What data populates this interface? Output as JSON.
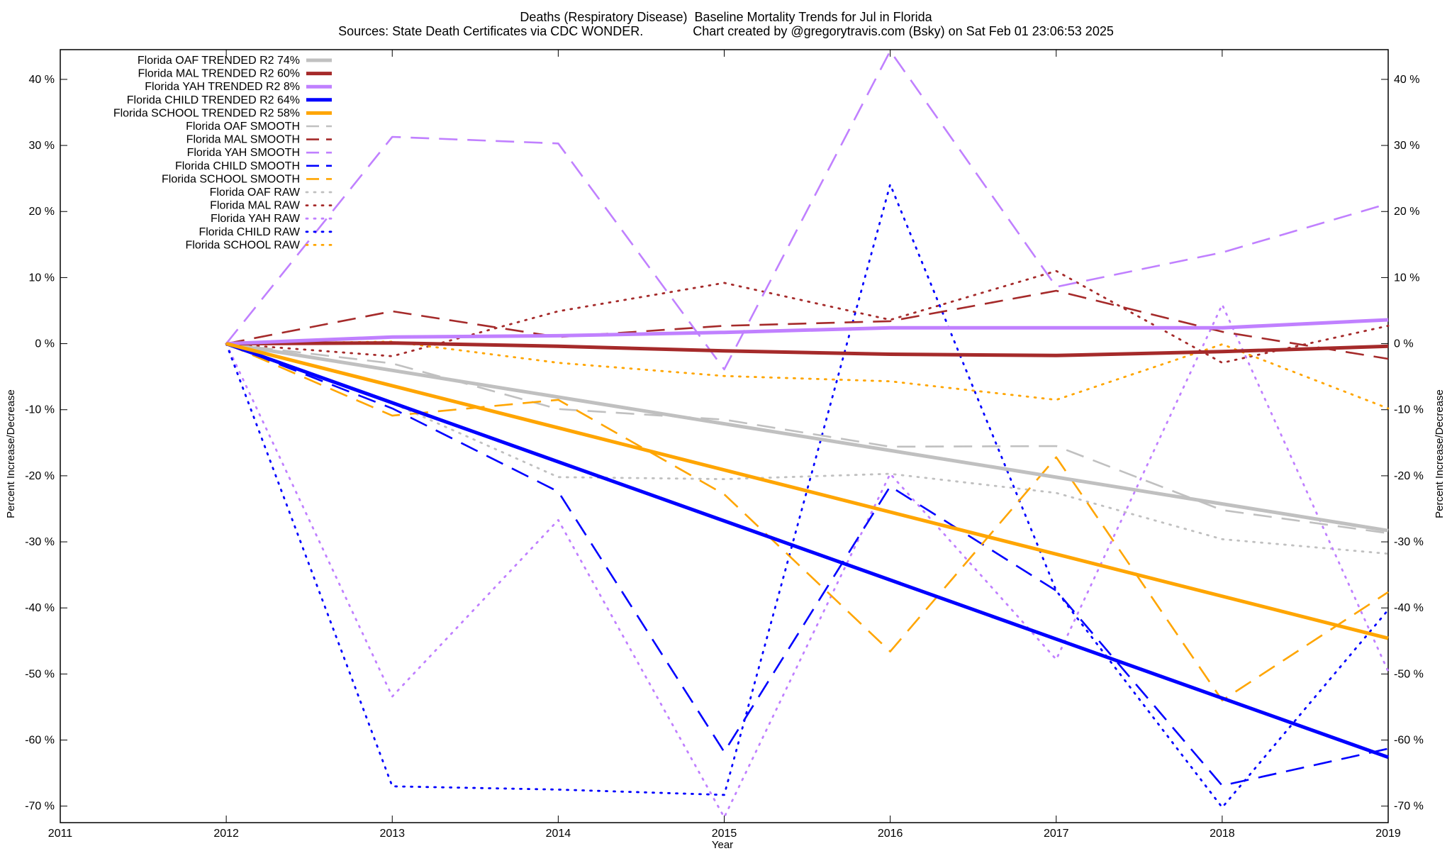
{
  "chart_data": {
    "type": "line",
    "title": "Deaths (Respiratory Disease)  Baseline Mortality Trends for Jul in Florida",
    "subtitle": "Sources: State Death Certificates via CDC WONDER.              Chart created by @gregorytravis.com (Bsky) on Sat Feb 01 23:06:53 2025",
    "xlabel": "Year",
    "ylabel": "Percent Increase/Decrease",
    "y2label": "Percent Increase/Decrease",
    "xlim": [
      2011,
      2019
    ],
    "ylim": [
      -72.5,
      44.5
    ],
    "x_ticks": [
      "2011",
      "2012",
      "2013",
      "2014",
      "2015",
      "2016",
      "2017",
      "2018",
      "2019"
    ],
    "y_ticks": [
      "40 %",
      "30 %",
      "20 %",
      "10 %",
      "0 %",
      "-10 %",
      "-20 %",
      "-30 %",
      "-40 %",
      "-50 %",
      "-60 %",
      "-70 %"
    ],
    "y_tick_values": [
      40,
      30,
      20,
      10,
      0,
      -10,
      -20,
      -30,
      -40,
      -50,
      -60,
      -70
    ],
    "grid": false,
    "legend_position": "top-left",
    "colors": {
      "oaf": "#c0c0c0",
      "mal": "#a52a2a",
      "yah": "#c080ff",
      "child": "#0000ff",
      "school": "#ffa500"
    },
    "series": [
      {
        "name": "Florida OAF TRENDED R2  74%",
        "color_key": "oaf",
        "style": "trend",
        "x": [
          2012,
          2019
        ],
        "y": [
          0,
          -28.3
        ]
      },
      {
        "name": "Florida MAL TRENDED R2  60%",
        "color_key": "mal",
        "style": "trend",
        "x": [
          2012,
          2013,
          2014,
          2015,
          2016,
          2017,
          2018,
          2019
        ],
        "y": [
          0,
          0.1,
          -0.4,
          -1.1,
          -1.6,
          -1.8,
          -1.2,
          -0.4
        ]
      },
      {
        "name": "Florida YAH TRENDED R2   8%",
        "color_key": "yah",
        "style": "trend",
        "x": [
          2012,
          2013,
          2014,
          2015,
          2016,
          2017,
          2018,
          2019
        ],
        "y": [
          0,
          1.0,
          1.2,
          1.7,
          2.4,
          2.4,
          2.4,
          3.6
        ]
      },
      {
        "name": "Florida CHILD TRENDED R2  64%",
        "color_key": "child",
        "style": "trend",
        "x": [
          2012,
          2019
        ],
        "y": [
          0,
          -62.6
        ]
      },
      {
        "name": "Florida SCHOOL TRENDED R2  58%",
        "color_key": "school",
        "style": "trend",
        "x": [
          2012,
          2019
        ],
        "y": [
          0,
          -44.6
        ]
      },
      {
        "name": "Florida OAF SMOOTH",
        "color_key": "oaf",
        "style": "smooth",
        "x": [
          2012,
          2013,
          2014,
          2015,
          2016,
          2017,
          2018,
          2019
        ],
        "y": [
          0,
          -3.0,
          -9.9,
          -11.5,
          -15.6,
          -15.5,
          -25.2,
          -28.7
        ]
      },
      {
        "name": "Florida MAL SMOOTH",
        "color_key": "mal",
        "style": "smooth",
        "x": [
          2012,
          2013,
          2014,
          2015,
          2016,
          2017,
          2018,
          2019
        ],
        "y": [
          0,
          4.9,
          1.0,
          2.7,
          3.4,
          8.0,
          1.8,
          -2.3
        ]
      },
      {
        "name": "Florida YAH SMOOTH",
        "color_key": "yah",
        "style": "smooth",
        "x": [
          2012,
          2013,
          2014,
          2015,
          2016,
          2017,
          2018,
          2019
        ],
        "y": [
          0,
          31.3,
          30.3,
          -3.9,
          44.3,
          8.6,
          13.8,
          21.2
        ]
      },
      {
        "name": "Florida CHILD SMOOTH",
        "color_key": "child",
        "style": "smooth",
        "x": [
          2012,
          2013,
          2014,
          2015,
          2016,
          2017,
          2018,
          2019
        ],
        "y": [
          0,
          -9.8,
          -22.4,
          -61.8,
          -21.6,
          -37.4,
          -66.9,
          -61.3
        ]
      },
      {
        "name": "Florida SCHOOL SMOOTH",
        "color_key": "school",
        "style": "smooth",
        "x": [
          2012,
          2013,
          2014,
          2015,
          2016,
          2017,
          2018,
          2019
        ],
        "y": [
          0,
          -10.9,
          -8.5,
          -22.8,
          -46.6,
          -17.2,
          -54.0,
          -37.6
        ]
      },
      {
        "name": "Florida OAF RAW",
        "color_key": "oaf",
        "style": "raw",
        "x": [
          2012,
          2013,
          2014,
          2015,
          2016,
          2017,
          2018,
          2019
        ],
        "y": [
          0,
          -9.0,
          -20.2,
          -20.5,
          -19.7,
          -22.6,
          -29.6,
          -31.8
        ]
      },
      {
        "name": "Florida MAL RAW",
        "color_key": "mal",
        "style": "raw",
        "x": [
          2012,
          2013,
          2014,
          2015,
          2016,
          2017,
          2018,
          2019
        ],
        "y": [
          0,
          -1.9,
          4.9,
          9.2,
          3.6,
          11.0,
          -2.9,
          2.7
        ]
      },
      {
        "name": "Florida YAH RAW",
        "color_key": "yah",
        "style": "raw",
        "x": [
          2012,
          2013,
          2014,
          2015,
          2016,
          2017,
          2018,
          2019
        ],
        "y": [
          0,
          -53.4,
          -26.7,
          -71.7,
          -19.7,
          -47.8,
          5.9,
          -49.6
        ]
      },
      {
        "name": "Florida CHILD RAW",
        "color_key": "child",
        "style": "raw",
        "x": [
          2012,
          2013,
          2014,
          2015,
          2016,
          2017,
          2018,
          2019
        ],
        "y": [
          0,
          -67.0,
          -67.5,
          -68.3,
          24.1,
          -37.4,
          -70.2,
          -40.3
        ]
      },
      {
        "name": "Florida SCHOOL RAW",
        "color_key": "school",
        "style": "raw",
        "x": [
          2012,
          2013,
          2014,
          2015,
          2016,
          2017,
          2018,
          2019
        ],
        "y": [
          0,
          0.3,
          -2.9,
          -4.9,
          -5.7,
          -8.5,
          -0.1,
          -9.8
        ]
      }
    ]
  }
}
